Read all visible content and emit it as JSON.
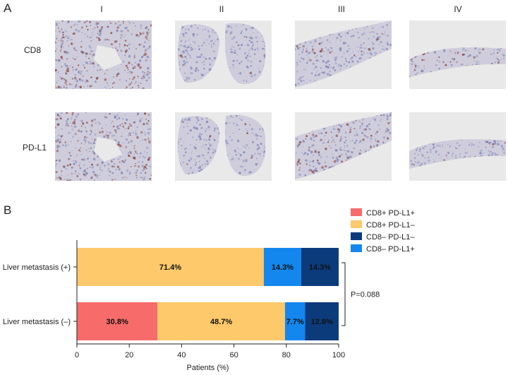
{
  "panel_a": {
    "letter": "A",
    "columns": [
      "I",
      "II",
      "III",
      "IV"
    ],
    "rows": [
      "CD8",
      "PD-L1"
    ],
    "tiles": [
      {
        "row": "CD8",
        "col": "I",
        "brown": 0.55,
        "kind": "fragments"
      },
      {
        "row": "CD8",
        "col": "II",
        "brown": 0.05,
        "kind": "two-lobes"
      },
      {
        "row": "CD8",
        "col": "III",
        "brown": 0.1,
        "kind": "strip"
      },
      {
        "row": "CD8",
        "col": "IV",
        "brown": 0.4,
        "kind": "band"
      },
      {
        "row": "PD-L1",
        "col": "I",
        "brown": 0.45,
        "kind": "fragments"
      },
      {
        "row": "PD-L1",
        "col": "II",
        "brown": 0.05,
        "kind": "two-lobes"
      },
      {
        "row": "PD-L1",
        "col": "III",
        "brown": 0.35,
        "kind": "strip"
      },
      {
        "row": "PD-L1",
        "col": "IV",
        "brown": 0.1,
        "kind": "band"
      }
    ]
  },
  "panel_b": {
    "letter": "B"
  },
  "colors": {
    "cd8p_pdl1p": "#f76b6b",
    "cd8p_pdl1n": "#fdc96a",
    "cd8n_pdl1n": "#0c3b7c",
    "cd8n_pdl1p": "#1387ee",
    "tissue_bg": "#e9e9e9",
    "blue_stain": "#7f86b8",
    "brown_stain": "#8a4a44"
  },
  "chart_data": {
    "type": "bar",
    "orientation": "horizontal",
    "stacked": true,
    "categories": [
      "Liver metastasis (+)",
      "Liver metastasis (–)"
    ],
    "series": [
      {
        "name": "CD8+ PD-L1+",
        "color": "#f76b6b",
        "values": [
          0,
          30.8
        ],
        "labels": [
          "",
          "30.8%"
        ]
      },
      {
        "name": "CD8+ PD-L1–",
        "color": "#fdc96a",
        "values": [
          71.4,
          48.7
        ],
        "labels": [
          "71.4%",
          "48.7%"
        ]
      },
      {
        "name": "CD8– PD-L1+",
        "color": "#1387ee",
        "values": [
          14.3,
          7.7
        ],
        "labels": [
          "14.3%",
          "7.7%"
        ]
      },
      {
        "name": "CD8– PD-L1–",
        "color": "#0c3b7c",
        "values": [
          14.3,
          12.8
        ],
        "labels": [
          "14.3%",
          "12.8%"
        ]
      }
    ],
    "legend": {
      "position": "top-right",
      "order": [
        "CD8+ PD-L1+",
        "CD8+ PD-L1–",
        "CD8– PD-L1–",
        "CD8– PD-L1+"
      ]
    },
    "xlabel": "Patients (%)",
    "xlim": [
      0,
      100
    ],
    "xticks": [
      0,
      20,
      40,
      60,
      80,
      100
    ],
    "annotation": "P=0.088"
  }
}
